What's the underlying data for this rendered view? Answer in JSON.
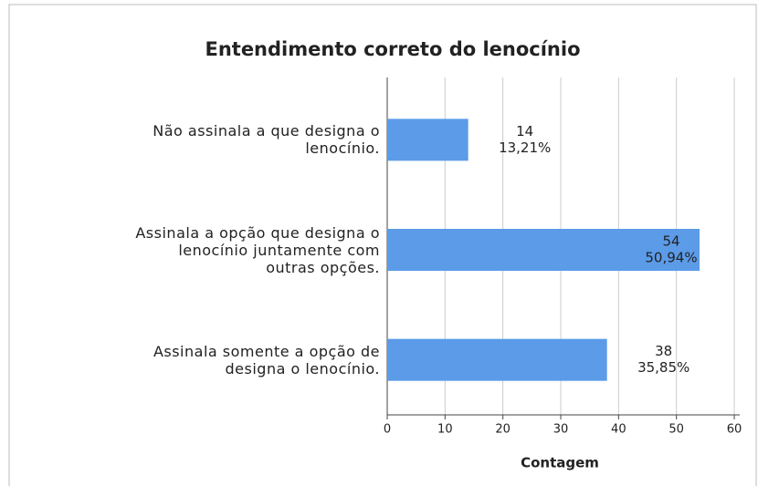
{
  "chart_data": {
    "type": "bar",
    "orientation": "horizontal",
    "title": "Entendimento correto do lenocínio",
    "x_label": "Contagem",
    "categories": [
      "Não assinala a que designa o\nlenocínio.",
      "Assinala a opção que designa o\nlenocínio juntamente com\noutras opções.",
      "Assinala somente a opção de\ndesigna o lenocínio."
    ],
    "values": [
      14,
      54,
      38
    ],
    "percent_labels": [
      "13,21%",
      "50,94%",
      "35,85%"
    ],
    "color": "#5b9be8",
    "xlim": [
      0,
      60
    ],
    "xticks": [
      0,
      10,
      20,
      30,
      40,
      50,
      60
    ],
    "grid": true
  }
}
